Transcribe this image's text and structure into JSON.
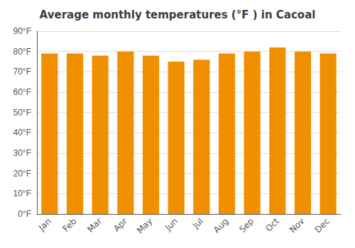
{
  "chart_data": {
    "type": "bar",
    "title": "Average monthly temperatures (°F ) in Cacoal",
    "categories": [
      "Jan",
      "Feb",
      "Mar",
      "Apr",
      "May",
      "Jun",
      "Jul",
      "Aug",
      "Sep",
      "Oct",
      "Nov",
      "Dec"
    ],
    "values": [
      79,
      79,
      78,
      80,
      78,
      75,
      76,
      79,
      80,
      82,
      80,
      79
    ],
    "color": "#F09000",
    "ylim": [
      0,
      90
    ],
    "yticks": [
      {
        "value": 0,
        "label": "0°F"
      },
      {
        "value": 10,
        "label": "10°F"
      },
      {
        "value": 20,
        "label": "20°F"
      },
      {
        "value": 30,
        "label": "30°F"
      },
      {
        "value": 40,
        "label": "40°F"
      },
      {
        "value": 50,
        "label": "50°F"
      },
      {
        "value": 60,
        "label": "60°F"
      },
      {
        "value": 70,
        "label": "70°F"
      },
      {
        "value": 80,
        "label": "80°F"
      },
      {
        "value": 90,
        "label": "90°F"
      }
    ],
    "grid": true
  }
}
